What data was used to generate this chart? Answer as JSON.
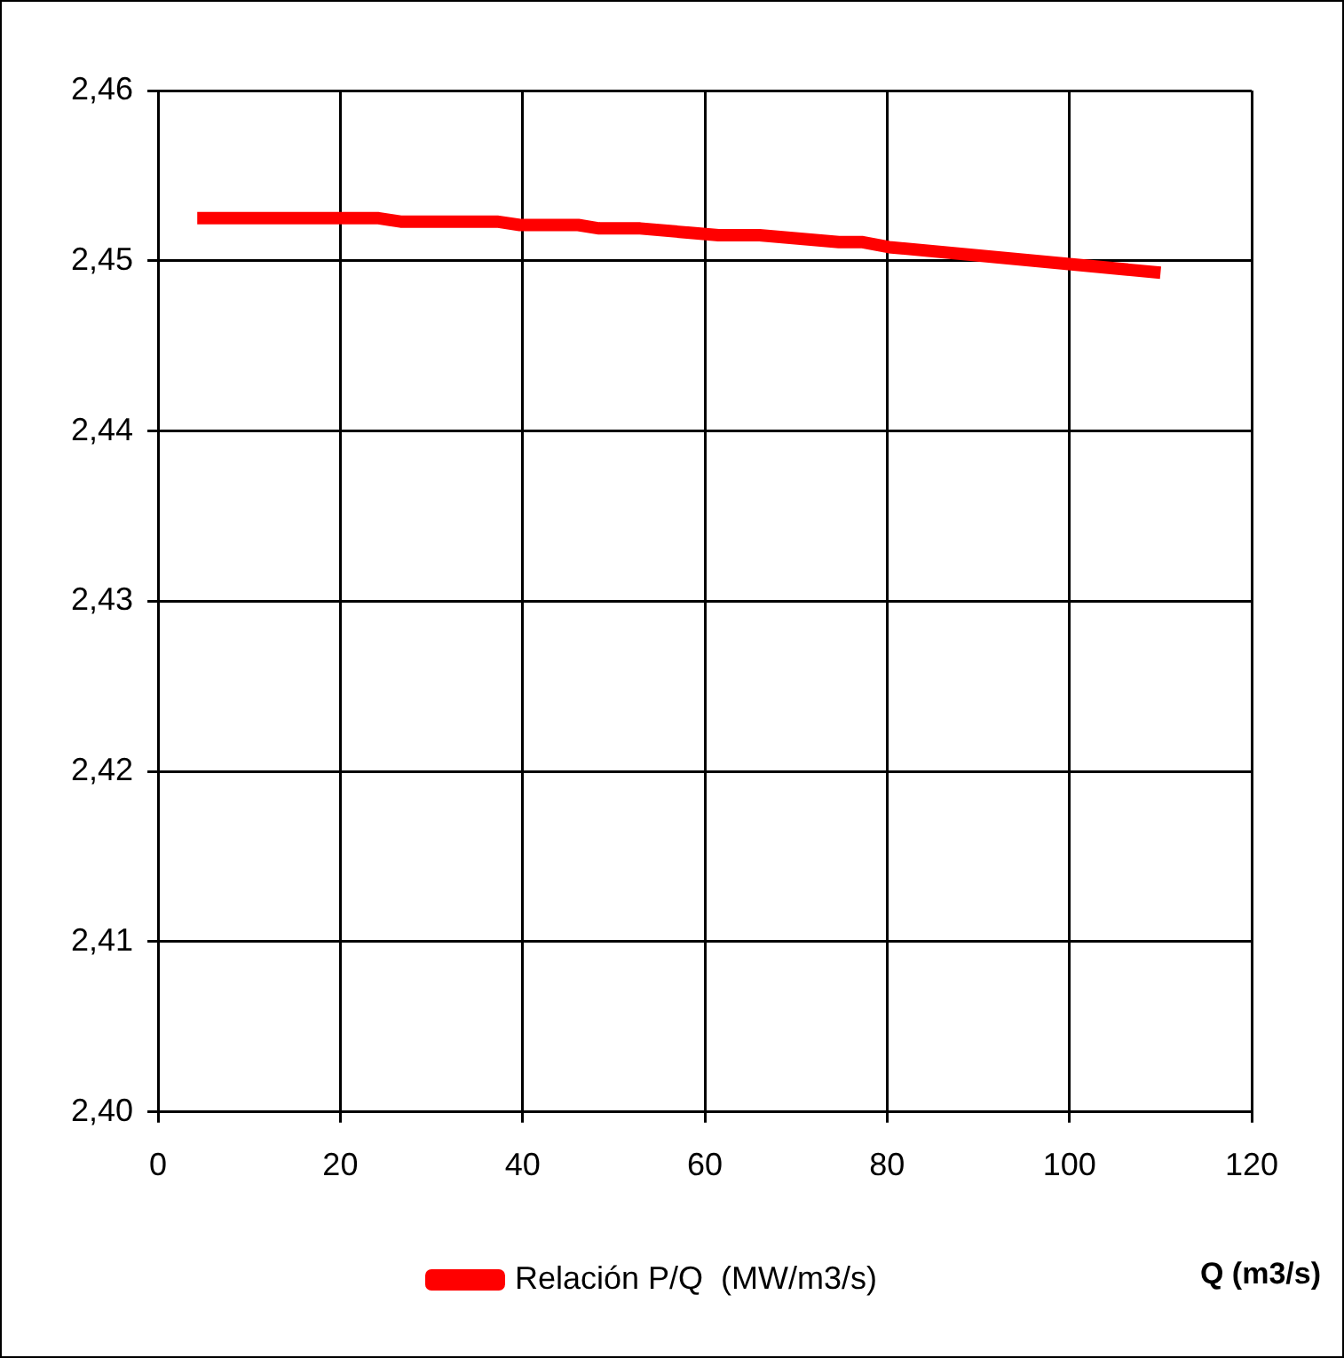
{
  "chart_data": {
    "type": "line",
    "xlabel": "Q (m3/s)",
    "xlim": [
      0,
      120
    ],
    "xticks": [
      0,
      20,
      40,
      60,
      80,
      100,
      120
    ],
    "ylim": [
      2.4,
      2.46
    ],
    "yticks": [
      {
        "value": 2.4,
        "label": "2,40"
      },
      {
        "value": 2.41,
        "label": "2,41"
      },
      {
        "value": 2.42,
        "label": "2,42"
      },
      {
        "value": 2.43,
        "label": "2,43"
      },
      {
        "value": 2.44,
        "label": "2,44"
      },
      {
        "value": 2.45,
        "label": "2,45"
      },
      {
        "value": 2.46,
        "label": "2,46"
      }
    ],
    "grid": true,
    "legend": "bottom",
    "marker": "none",
    "line_style": "solid",
    "series": [
      {
        "name": "Relación P/Q  (MW/m3/s)",
        "color": "#ff0000",
        "x": [
          4.3,
          24.2,
          26.6,
          37.2,
          39.7,
          46.1,
          48.4,
          52.9,
          61.5,
          66.0,
          74.7,
          77.2,
          80.2,
          110.0
        ],
        "values": [
          2.4525,
          2.4525,
          2.4523,
          2.4523,
          2.4521,
          2.4521,
          2.4519,
          2.4519,
          2.4515,
          2.4515,
          2.4511,
          2.4511,
          2.4508,
          2.4493
        ]
      }
    ]
  }
}
